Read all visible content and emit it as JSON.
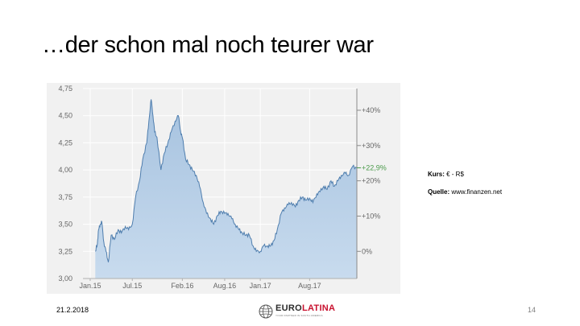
{
  "slide": {
    "title": "…der schon mal noch teurer war",
    "date": "21.2.2018",
    "page_number": "14"
  },
  "info": {
    "kurs_label": "Kurs:",
    "kurs_value": "€ - R$",
    "quelle_label": "Quelle:",
    "quelle_value": "www.finanzen.net"
  },
  "logo": {
    "name_part1": "EURO",
    "name_part2": "LATINA",
    "tagline": "YOUR PARTNER IN SOUTH AMERICA",
    "globe_icon": "globe-icon",
    "colors": {
      "dark": "#2a2a2a",
      "red": "#c8102e"
    }
  },
  "chart_data": {
    "type": "area",
    "title": "",
    "xlabel": "",
    "ylabel": "",
    "ylim": [
      3.0,
      4.75
    ],
    "xlim": [
      "2014-12-01",
      "2018-02-20"
    ],
    "grid": true,
    "legend": "none",
    "x_ticks": [
      {
        "label": "Jan.15",
        "date": "2015-01-01"
      },
      {
        "label": "Jul.15",
        "date": "2015-07-01"
      },
      {
        "label": "Feb.16",
        "date": "2016-02-01"
      },
      {
        "label": "Aug.16",
        "date": "2016-08-01"
      },
      {
        "label": "Jan.17",
        "date": "2017-01-01"
      },
      {
        "label": "Aug.17",
        "date": "2017-08-01"
      }
    ],
    "y_ticks_left": [
      "3,00",
      "3,25",
      "3,50",
      "3,75",
      "4,00",
      "4,25",
      "4,50",
      "4,75"
    ],
    "y_tick_values_left": [
      3.0,
      3.25,
      3.5,
      3.75,
      4.0,
      4.25,
      4.5,
      4.75
    ],
    "y_ticks_right": [
      {
        "label": "0%",
        "value": 3.25
      },
      {
        "label": "+10%",
        "value": 3.575
      },
      {
        "label": "+20%",
        "value": 3.9
      },
      {
        "label": "+30%",
        "value": 4.225
      },
      {
        "label": "+40%",
        "value": 4.55
      }
    ],
    "current": {
      "label": "+22,9%",
      "value": 4.02,
      "color": "#4a9a4a"
    },
    "colors": {
      "line": "#4f7eae",
      "fill_top": "#a6c2df",
      "fill_bottom": "#c8dbee",
      "grid": "#ffffff",
      "background": "#f1f1f1"
    },
    "series": [
      {
        "x": [
          "2015-01-23",
          "2015-02-01",
          "2015-02-06",
          "2015-02-13",
          "2015-02-20",
          "2015-03-01",
          "2015-03-10",
          "2015-03-20",
          "2015-04-01",
          "2015-04-15",
          "2015-05-01",
          "2015-05-15",
          "2015-06-01",
          "2015-06-15",
          "2015-07-01",
          "2015-07-15",
          "2015-08-01",
          "2015-08-15",
          "2015-09-01",
          "2015-09-10",
          "2015-09-20",
          "2015-09-28",
          "2015-10-05",
          "2015-10-15",
          "2015-11-01",
          "2015-11-15",
          "2015-12-01",
          "2015-12-15",
          "2016-01-01",
          "2016-01-15",
          "2016-01-25",
          "2016-02-01",
          "2016-02-15",
          "2016-03-01",
          "2016-03-15",
          "2016-04-01",
          "2016-04-15",
          "2016-05-01",
          "2016-05-15",
          "2016-06-01",
          "2016-06-15",
          "2016-07-01",
          "2016-07-15",
          "2016-08-01",
          "2016-08-15",
          "2016-09-01",
          "2016-09-15",
          "2016-10-01",
          "2016-10-15",
          "2016-11-01",
          "2016-11-15",
          "2016-12-01",
          "2016-12-15",
          "2017-01-01",
          "2017-01-15",
          "2017-02-01",
          "2017-02-15",
          "2017-03-01",
          "2017-03-15",
          "2017-04-01",
          "2017-04-15",
          "2017-05-01",
          "2017-05-15",
          "2017-06-01",
          "2017-06-15",
          "2017-07-01",
          "2017-07-15",
          "2017-08-01",
          "2017-08-15",
          "2017-09-01",
          "2017-09-15",
          "2017-10-01",
          "2017-10-15",
          "2017-11-01",
          "2017-11-15",
          "2017-12-01",
          "2017-12-15",
          "2018-01-01",
          "2018-01-15",
          "2018-02-01",
          "2018-02-20"
        ],
        "y": [
          3.25,
          3.32,
          3.45,
          3.5,
          3.52,
          3.33,
          3.25,
          3.15,
          3.4,
          3.36,
          3.45,
          3.42,
          3.48,
          3.45,
          3.5,
          3.75,
          3.9,
          4.1,
          4.25,
          4.45,
          4.65,
          4.5,
          4.35,
          4.3,
          4.0,
          4.15,
          4.25,
          4.35,
          4.45,
          4.5,
          4.35,
          4.3,
          4.1,
          4.05,
          4.0,
          3.95,
          3.85,
          3.7,
          3.6,
          3.55,
          3.5,
          3.58,
          3.62,
          3.6,
          3.6,
          3.55,
          3.5,
          3.45,
          3.42,
          3.4,
          3.4,
          3.3,
          3.25,
          3.25,
          3.3,
          3.3,
          3.3,
          3.35,
          3.45,
          3.6,
          3.65,
          3.68,
          3.7,
          3.66,
          3.72,
          3.75,
          3.72,
          3.74,
          3.7,
          3.78,
          3.8,
          3.85,
          3.82,
          3.9,
          3.85,
          3.9,
          3.95,
          3.97,
          3.95,
          4.03,
          4.02
        ]
      }
    ]
  }
}
